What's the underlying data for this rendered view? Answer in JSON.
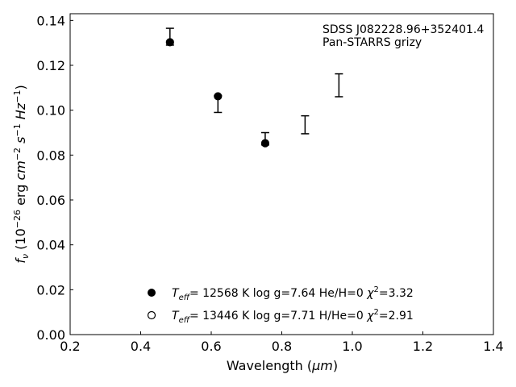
{
  "chart_data": {
    "type": "scatter",
    "xlabel_main": "Wavelength (",
    "xlabel_mu": "μm",
    "xlabel_end": ")",
    "ylabel_parts": [
      "f",
      "ν",
      " (10",
      "−26",
      " erg ",
      "cm",
      "−2",
      " ",
      "s",
      "−1",
      " ",
      "Hz",
      "−1",
      ")"
    ],
    "xlim": [
      0.2,
      1.4
    ],
    "ylim": [
      0.0,
      0.143
    ],
    "x_ticks": [
      "0.2",
      "0.4",
      "0.6",
      "0.8",
      "1.0",
      "1.2",
      "1.4"
    ],
    "y_ticks": [
      "0.00",
      "0.02",
      "0.04",
      "0.06",
      "0.08",
      "0.10",
      "0.12",
      "0.14"
    ],
    "grid": false,
    "annotation_lines": [
      "SDSS J082228.96+352401.4",
      "Pan-STARRS grizy"
    ],
    "observed": [
      {
        "x": 0.483,
        "y": 0.1325,
        "low": 0.129,
        "high": 0.1365
      },
      {
        "x": 0.619,
        "y": 0.105,
        "low": 0.099,
        "high": 0.1065
      },
      {
        "x": 0.753,
        "y": 0.0865,
        "low": 0.0845,
        "high": 0.09
      },
      {
        "x": 0.866,
        "y": 0.0935,
        "low": 0.0895,
        "high": 0.0975
      },
      {
        "x": 0.962,
        "y": 0.1112,
        "low": 0.106,
        "high": 0.1162
      }
    ],
    "models": [
      {
        "marker": "filled-circle",
        "points": [
          {
            "x": 0.483,
            "y": 0.1303
          },
          {
            "x": 0.619,
            "y": 0.1062
          },
          {
            "x": 0.753,
            "y": 0.0853
          }
        ],
        "label": {
          "T": "T",
          "sub": "eff",
          "rest": "= 12568 K  log g=7.64  He/H=0  ",
          "chi": "χ",
          "sup": "2",
          "end": "=3.32"
        }
      },
      {
        "marker": "open-circle",
        "points": [],
        "label": {
          "T": "T",
          "sub": "eff",
          "rest": "= 13446 K  log g=7.71  H/He=0  ",
          "chi": "χ",
          "sup": "2",
          "end": "=2.91"
        }
      }
    ]
  }
}
